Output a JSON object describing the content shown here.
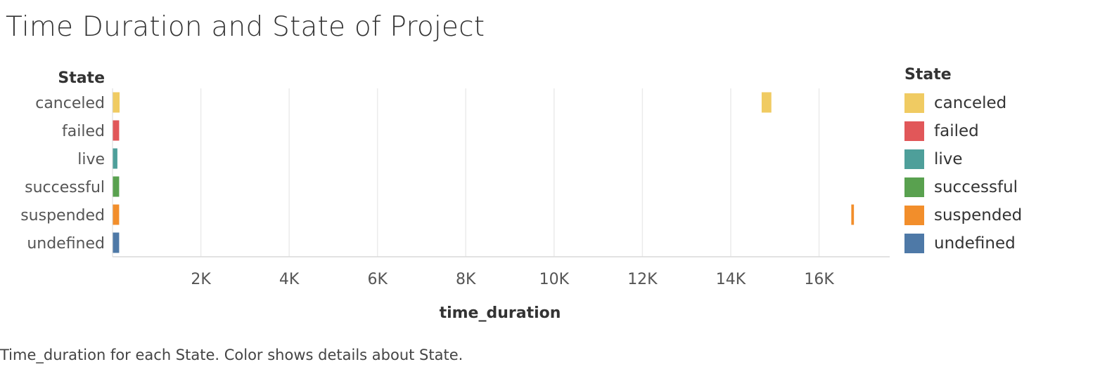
{
  "title": "Time Duration and State of Project",
  "caption": "Time_duration for each State.  Color shows details about State.",
  "chart_data": {
    "type": "bar",
    "orientation": "horizontal",
    "title": "Time Duration and State of Project",
    "row_header": "State",
    "xlabel": "time_duration",
    "categories": [
      "canceled",
      "failed",
      "live",
      "successful",
      "suspended",
      "undefined"
    ],
    "xlim": [
      0,
      17600
    ],
    "x_ticks": [
      2000,
      4000,
      6000,
      8000,
      10000,
      12000,
      14000,
      16000
    ],
    "x_tick_labels": [
      "2K",
      "4K",
      "6K",
      "8K",
      "10K",
      "12K",
      "14K",
      "16K"
    ],
    "grid": true,
    "legend_position": "right",
    "legend_title": "State",
    "colors": {
      "canceled": "#f0cb62",
      "failed": "#e15759",
      "live": "#4e9f9a",
      "successful": "#59a14f",
      "suspended": "#f28e2b",
      "undefined": "#4e79a7"
    },
    "series": [
      {
        "category": "canceled",
        "points": [
          {
            "start": 0,
            "end": 160
          },
          {
            "start": 14700,
            "end": 14920
          }
        ]
      },
      {
        "category": "failed",
        "points": [
          {
            "start": 0,
            "end": 150
          }
        ]
      },
      {
        "category": "live",
        "points": [
          {
            "start": 0,
            "end": 110
          }
        ]
      },
      {
        "category": "successful",
        "points": [
          {
            "start": 0,
            "end": 150
          }
        ]
      },
      {
        "category": "suspended",
        "points": [
          {
            "start": 0,
            "end": 150
          },
          {
            "start": 16730,
            "end": 16790
          }
        ]
      },
      {
        "category": "undefined",
        "points": [
          {
            "start": 0,
            "end": 150
          }
        ]
      }
    ]
  }
}
